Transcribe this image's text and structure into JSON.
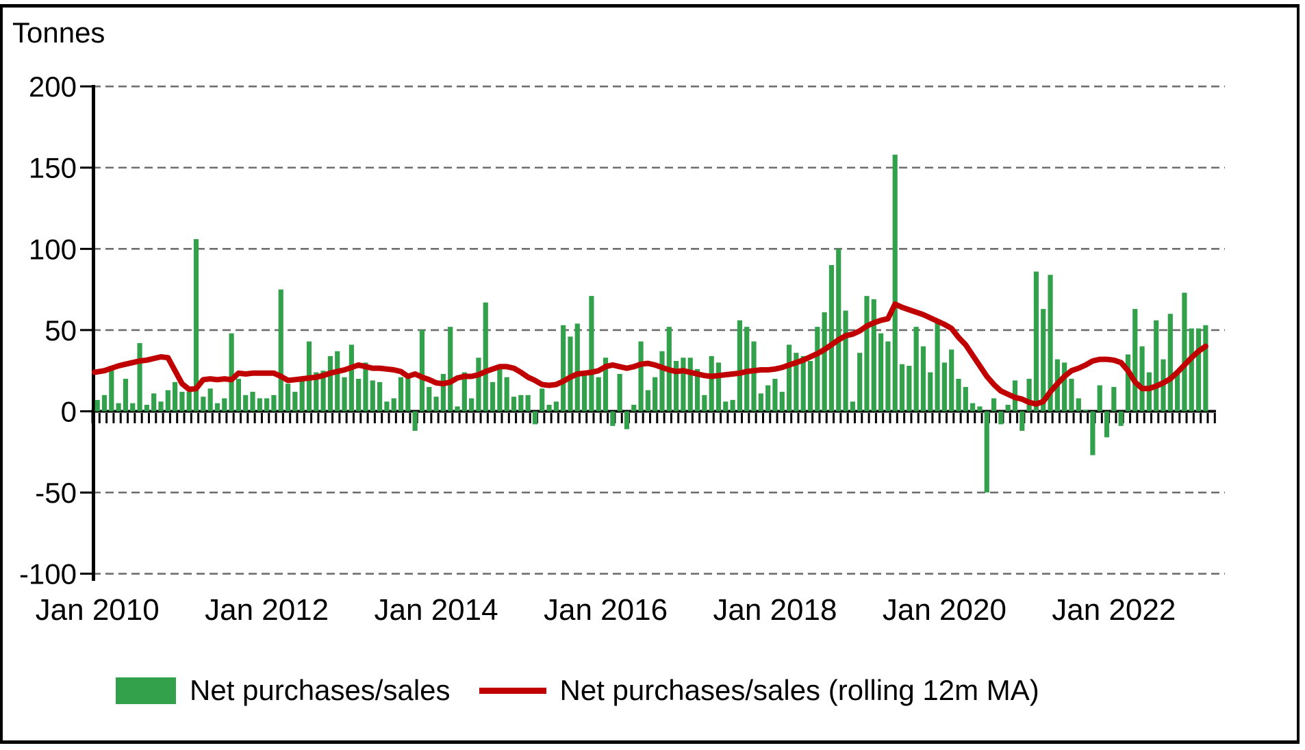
{
  "chart_data": {
    "type": "bar+line combo",
    "title": "Tonnes",
    "ylabel": "Tonnes",
    "ylim": [
      -100,
      200
    ],
    "ytick_step": 50,
    "grid": "horizontal dashed, solid black zero baseline",
    "legend_position": "bottom",
    "x_start": "Jan 2010",
    "x_end": "Feb 2023",
    "months_per_bar": 1,
    "yticks": [
      200,
      150,
      100,
      50,
      0,
      -50,
      -100
    ],
    "xticks": [
      {
        "label": "Jan 2010",
        "month_index": 0
      },
      {
        "label": "Jan 2012",
        "month_index": 24
      },
      {
        "label": "Jan 2014",
        "month_index": 48
      },
      {
        "label": "Jan 2016",
        "month_index": 72
      },
      {
        "label": "Jan 2018",
        "month_index": 96
      },
      {
        "label": "Jan 2020",
        "month_index": 120
      },
      {
        "label": "Jan 2022",
        "month_index": 144
      }
    ],
    "series": [
      {
        "name": "Net purchases/sales",
        "type": "bar",
        "color": "#33A14C",
        "values": [
          7,
          10,
          28,
          5,
          20,
          5,
          42,
          4,
          11,
          6,
          13,
          18,
          12,
          12,
          106,
          9,
          14,
          5,
          8,
          48,
          20,
          10,
          12,
          8,
          8,
          10,
          75,
          17,
          12,
          19,
          43,
          24,
          25,
          34,
          37,
          21,
          41,
          20,
          30,
          19,
          18,
          6,
          8,
          21,
          22,
          -12,
          50,
          15,
          9,
          23,
          52,
          3,
          24,
          8,
          33,
          67,
          18,
          26,
          21,
          9,
          10,
          10,
          -8,
          14,
          4,
          6,
          53,
          46,
          54,
          22,
          71,
          21,
          33,
          -9,
          23,
          -11,
          4,
          43,
          13,
          21,
          37,
          52,
          31,
          33,
          33,
          26,
          10,
          34,
          30,
          6,
          7,
          56,
          52,
          43,
          11,
          16,
          20,
          12,
          41,
          36,
          34,
          31,
          52,
          61,
          90,
          100,
          62,
          6,
          36,
          71,
          69,
          48,
          43,
          158,
          29,
          28,
          52,
          40,
          24,
          56,
          30,
          38,
          20,
          15,
          5,
          3,
          -50,
          8,
          -8,
          4,
          19,
          -12,
          20,
          86,
          63,
          84,
          32,
          30,
          20,
          8,
          1,
          -27,
          16,
          -16,
          15,
          -9,
          35,
          63,
          40,
          24,
          56,
          32,
          60,
          24,
          73,
          51,
          51,
          53
        ]
      },
      {
        "name": "Net purchases/sales (rolling 12m MA)",
        "type": "line",
        "color": "#C00000",
        "values": [
          24,
          25,
          26.5,
          28,
          29,
          30,
          31,
          31.5,
          32.5,
          33.5,
          33,
          25,
          17,
          13.5,
          14,
          19.5,
          20,
          19.5,
          20,
          19.5,
          23.5,
          23,
          23.5,
          23.5,
          23.5,
          23.5,
          21.5,
          19,
          19.5,
          20,
          20.5,
          21,
          22,
          23.5,
          24.5,
          25.5,
          27,
          28.5,
          27.5,
          26.5,
          26.5,
          26,
          25.5,
          24.5,
          21.5,
          23,
          21,
          19.5,
          17.5,
          17,
          18,
          20.5,
          21.5,
          21.5,
          22.5,
          24.5,
          26,
          27.5,
          27.5,
          26.5,
          24,
          21,
          19,
          16.5,
          16,
          16.5,
          18.5,
          21,
          23,
          23.5,
          24,
          25,
          27.5,
          28.5,
          27.5,
          26.5,
          27.5,
          29,
          29.5,
          28.5,
          27,
          25.5,
          24.5,
          25,
          24,
          23,
          22,
          21.5,
          22,
          22.5,
          23,
          23.5,
          24.5,
          25,
          25.5,
          25.5,
          26,
          27,
          28.5,
          30,
          31.5,
          33.5,
          35.5,
          38,
          41,
          44,
          46.5,
          47.5,
          49.5,
          52.5,
          54.5,
          56,
          57,
          66,
          64,
          62.5,
          61,
          59.5,
          57.5,
          55.5,
          53.5,
          51,
          45.5,
          41,
          34.5,
          28,
          21.5,
          16.5,
          12.5,
          10.5,
          8.5,
          7.5,
          5.5,
          4.5,
          6,
          12,
          17,
          21.5,
          25,
          26.5,
          28.5,
          31,
          32,
          32,
          31.5,
          30,
          25,
          18,
          14,
          14,
          15.5,
          17.5,
          20,
          24,
          28.5,
          33,
          37,
          40
        ]
      }
    ]
  },
  "legend": {
    "items": [
      {
        "label": "Net purchases/sales",
        "color": "#33A14C",
        "type": "bar"
      },
      {
        "label": "Net purchases/sales (rolling 12m MA)",
        "color": "#C00000",
        "type": "line"
      }
    ]
  }
}
